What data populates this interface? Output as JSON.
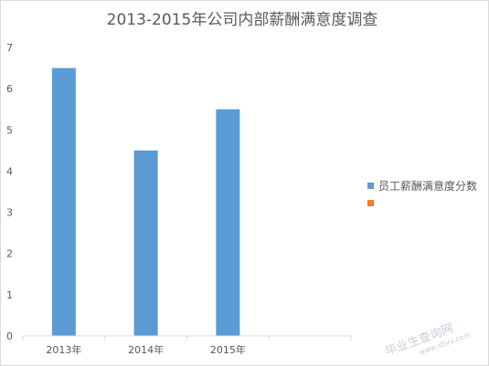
{
  "chart_data": {
    "type": "bar",
    "title": "2013-2015年公司内部薪酬满意度调查",
    "categories": [
      "2013年",
      "2014年",
      "2015年",
      ""
    ],
    "series": [
      {
        "name": "员工薪酬满意度分数",
        "values": [
          6.5,
          4.5,
          5.5,
          null
        ],
        "color": "#5b9bd5"
      },
      {
        "name": "",
        "values": [
          null,
          null,
          null,
          null
        ],
        "color": "#ed7d31"
      }
    ],
    "ylim": [
      0,
      7
    ],
    "yticks": [
      "0",
      "1",
      "2",
      "3",
      "4",
      "5",
      "6",
      "7"
    ],
    "xlabel": "",
    "ylabel": "",
    "legend_position": "right",
    "grid": false
  },
  "watermark": {
    "text": "毕业生查询网",
    "sub": "www.sbvv.com"
  }
}
